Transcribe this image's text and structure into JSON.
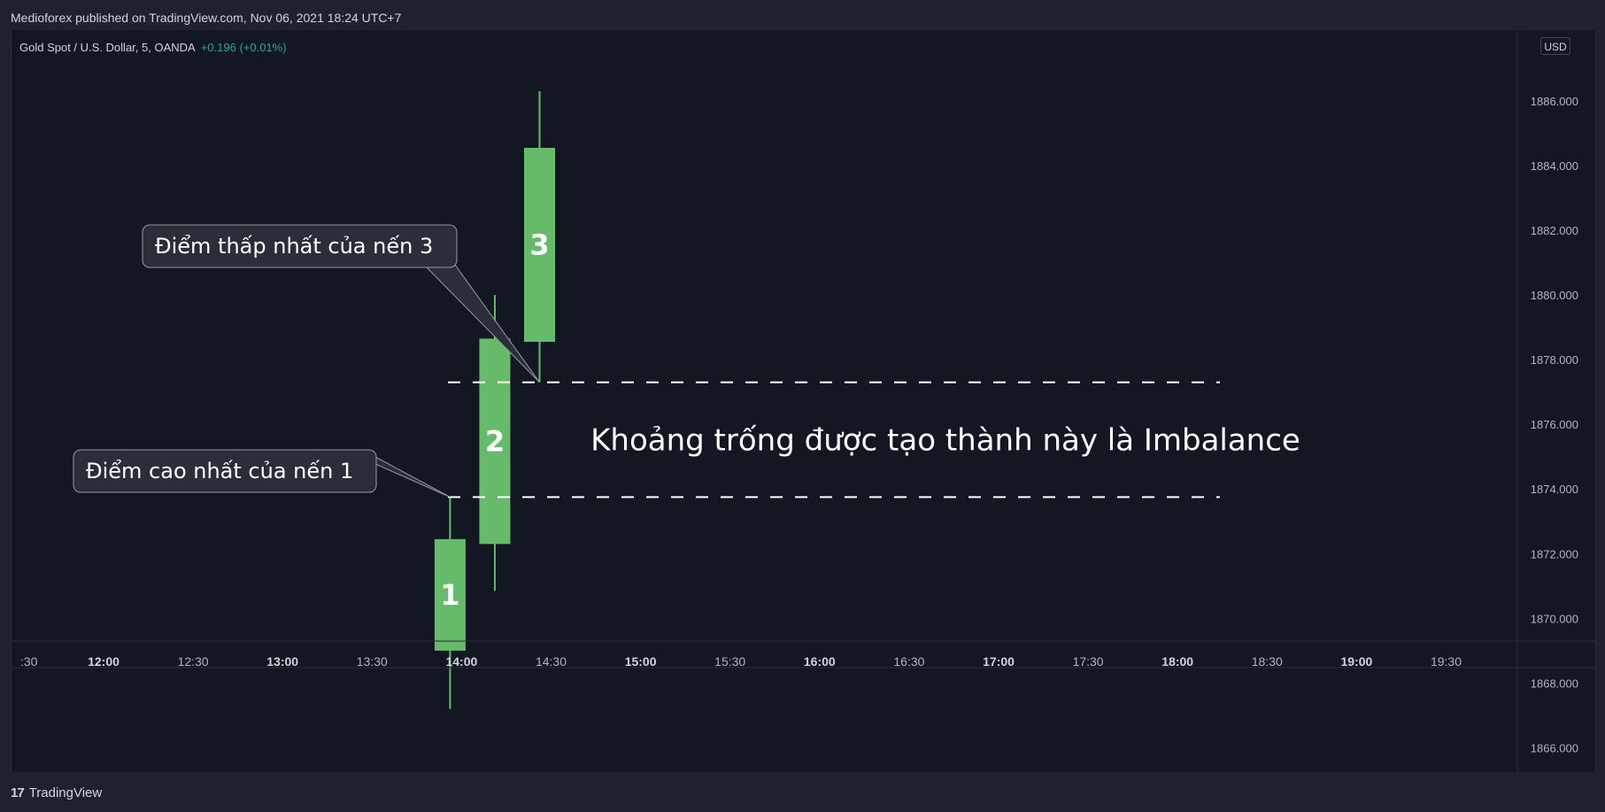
{
  "header": {
    "published": "Medioforex published on TradingView.com, Nov 06, 2021 18:24 UTC+7"
  },
  "legend": {
    "symbol": "Gold Spot / U.S. Dollar, 5, OANDA",
    "change": "+0.196 (+0.01%)"
  },
  "price_scale": {
    "currency": "USD"
  },
  "footer": {
    "logo_glyph": "17",
    "brand": "TradingView"
  },
  "colors": {
    "background": "#131722",
    "frame": "#1e222d",
    "candle_up": "#66bb6a",
    "text": "#d1d4dc",
    "positive_change": "#26a69a",
    "dashed_line": "#ffffff"
  },
  "chart_data": {
    "type": "candlestick",
    "y_axis": {
      "ticks": [
        "1866.000",
        "1868.000",
        "1870.000",
        "1872.000",
        "1874.000",
        "1876.000",
        "1878.000",
        "1880.000",
        "1882.000",
        "1884.000",
        "1886.000"
      ],
      "ylim": [
        1865.5,
        1886.4
      ]
    },
    "x_axis": {
      "ticks": [
        {
          "label": ":30",
          "bold": false
        },
        {
          "label": "12:00",
          "bold": true
        },
        {
          "label": "12:30",
          "bold": false
        },
        {
          "label": "13:00",
          "bold": true
        },
        {
          "label": "13:30",
          "bold": false
        },
        {
          "label": "14:00",
          "bold": true
        },
        {
          "label": "14:30",
          "bold": false
        },
        {
          "label": "15:00",
          "bold": true
        },
        {
          "label": "15:30",
          "bold": false
        },
        {
          "label": "16:00",
          "bold": true
        },
        {
          "label": "16:30",
          "bold": false
        },
        {
          "label": "17:00",
          "bold": true
        },
        {
          "label": "17:30",
          "bold": false
        },
        {
          "label": "18:00",
          "bold": true
        },
        {
          "label": "18:30",
          "bold": false
        },
        {
          "label": "19:00",
          "bold": true
        },
        {
          "label": "19:30",
          "bold": false
        }
      ]
    },
    "candles": [
      {
        "label": "1",
        "time": "14:00",
        "open": 1869.0,
        "high": 1873.75,
        "low": 1867.2,
        "close": 1872.45
      },
      {
        "label": "2",
        "time": "14:15",
        "open": 1872.3,
        "high": 1880.0,
        "low": 1870.85,
        "close": 1878.65
      },
      {
        "label": "3",
        "time": "14:30",
        "open": 1878.55,
        "high": 1886.3,
        "low": 1877.3,
        "close": 1884.55
      }
    ],
    "levels": [
      {
        "price": 1877.3,
        "style": "dashed"
      },
      {
        "price": 1873.75,
        "style": "dashed"
      }
    ],
    "annotations": [
      {
        "text": "Điểm thấp nhất của nến 3",
        "target_time": "14:30",
        "target_price": 1877.3
      },
      {
        "text": "Điểm cao nhất của nến 1",
        "target_time": "14:00",
        "target_price": 1873.75
      }
    ],
    "gap_label": "Khoảng trống được tạo thành này là Imbalance"
  }
}
